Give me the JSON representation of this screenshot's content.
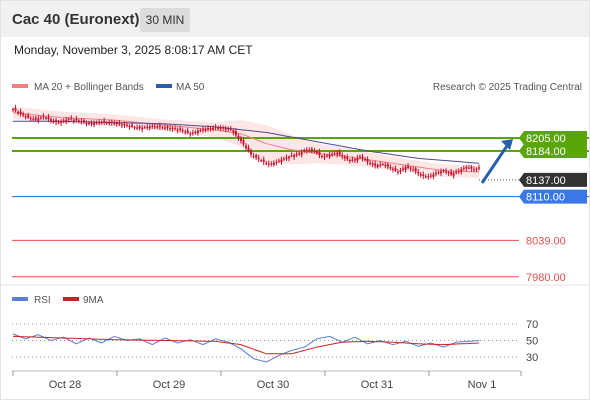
{
  "header": {
    "title": "Cac 40 (Euronext)",
    "timeframe": "30 MIN",
    "datetime": "Monday, November 3, 2025 8:08:17 AM CET"
  },
  "legend": {
    "ma20": "MA 20 + Bollinger Bands",
    "ma50": "MA 50",
    "credit": "Research © 2025 Trading Central",
    "rsi": "RSI",
    "rsi_ma": "9MA"
  },
  "colors": {
    "candle": "#c8102e",
    "ma20": "#f08080",
    "bollinger_fill": "#fde2e2",
    "ma50": "#4a4a8a",
    "resistance": "#5aa50a",
    "support": "#3b78e7",
    "target": "#e05050",
    "arrow": "#2a5ea8",
    "current": "#333333",
    "rsi": "#5b7fd6",
    "rsi_ma": "#cc2222"
  },
  "chart_data": {
    "type": "line",
    "series_kind": "candlestick",
    "x_ticks": [
      "Oct 28",
      "Oct 29",
      "Oct 30",
      "Oct 31",
      "Nov 1"
    ],
    "price_range": [
      7965,
      8265
    ],
    "price_path": [
      [
        0,
        8252
      ],
      [
        3,
        8244
      ],
      [
        6,
        8238
      ],
      [
        9,
        8235
      ],
      [
        12,
        8240
      ],
      [
        15,
        8233
      ],
      [
        18,
        8230
      ],
      [
        22,
        8236
      ],
      [
        26,
        8233
      ],
      [
        30,
        8228
      ],
      [
        35,
        8231
      ],
      [
        40,
        8229
      ],
      [
        45,
        8225
      ],
      [
        50,
        8221
      ],
      [
        55,
        8224
      ],
      [
        60,
        8222
      ],
      [
        66,
        8218
      ],
      [
        70,
        8212
      ],
      [
        74,
        8218
      ],
      [
        80,
        8222
      ],
      [
        86,
        8219
      ],
      [
        90,
        8200
      ],
      [
        94,
        8178
      ],
      [
        98,
        8168
      ],
      [
        101,
        8162
      ],
      [
        104,
        8166
      ],
      [
        107,
        8172
      ],
      [
        110,
        8176
      ],
      [
        113,
        8180
      ],
      [
        116,
        8186
      ],
      [
        119,
        8184
      ],
      [
        122,
        8174
      ],
      [
        125,
        8178
      ],
      [
        128,
        8181
      ],
      [
        131,
        8172
      ],
      [
        134,
        8168
      ],
      [
        137,
        8175
      ],
      [
        140,
        8166
      ],
      [
        143,
        8160
      ],
      [
        146,
        8163
      ],
      [
        149,
        8156
      ],
      [
        152,
        8150
      ],
      [
        155,
        8158
      ],
      [
        158,
        8154
      ],
      [
        161,
        8144
      ],
      [
        164,
        8142
      ],
      [
        167,
        8148
      ],
      [
        170,
        8152
      ],
      [
        173,
        8146
      ],
      [
        176,
        8152
      ],
      [
        179,
        8158
      ],
      [
        182,
        8154
      ],
      [
        184,
        8157
      ]
    ],
    "ma20_path": [
      [
        0,
        8246
      ],
      [
        20,
        8238
      ],
      [
        40,
        8234
      ],
      [
        60,
        8226
      ],
      [
        80,
        8218
      ],
      [
        90,
        8212
      ],
      [
        100,
        8196
      ],
      [
        110,
        8186
      ],
      [
        120,
        8180
      ],
      [
        130,
        8176
      ],
      [
        140,
        8170
      ],
      [
        150,
        8164
      ],
      [
        160,
        8158
      ],
      [
        170,
        8152
      ],
      [
        184,
        8150
      ]
    ],
    "bollinger_width": [
      [
        0,
        10
      ],
      [
        60,
        9
      ],
      [
        80,
        12
      ],
      [
        90,
        22
      ],
      [
        100,
        30
      ],
      [
        110,
        24
      ],
      [
        120,
        16
      ],
      [
        140,
        12
      ],
      [
        160,
        10
      ],
      [
        184,
        10
      ]
    ],
    "ma50_path": [
      [
        0,
        8232
      ],
      [
        20,
        8232
      ],
      [
        40,
        8230
      ],
      [
        60,
        8228
      ],
      [
        80,
        8223
      ],
      [
        100,
        8214
      ],
      [
        120,
        8199
      ],
      [
        140,
        8184
      ],
      [
        160,
        8172
      ],
      [
        184,
        8164
      ]
    ],
    "levels": [
      {
        "label": "8205.00",
        "value": 8205,
        "kind": "resistance"
      },
      {
        "label": "8184.00",
        "value": 8184,
        "kind": "resistance"
      },
      {
        "label": "8137.00",
        "value": 8137,
        "kind": "current"
      },
      {
        "label": "8110.00",
        "value": 8110,
        "kind": "support"
      },
      {
        "label": "8039.00",
        "value": 8039,
        "kind": "target"
      },
      {
        "label": "7980.00",
        "value": 7980,
        "kind": "target"
      }
    ],
    "rsi": {
      "ticks": [
        70,
        50,
        30
      ],
      "range": [
        18,
        82
      ],
      "rsi_path": [
        [
          0,
          58
        ],
        [
          5,
          52
        ],
        [
          10,
          57
        ],
        [
          15,
          50
        ],
        [
          20,
          54
        ],
        [
          25,
          46
        ],
        [
          30,
          53
        ],
        [
          35,
          47
        ],
        [
          40,
          55
        ],
        [
          45,
          50
        ],
        [
          50,
          52
        ],
        [
          55,
          45
        ],
        [
          60,
          53
        ],
        [
          65,
          47
        ],
        [
          70,
          51
        ],
        [
          75,
          45
        ],
        [
          80,
          52
        ],
        [
          85,
          48
        ],
        [
          90,
          40
        ],
        [
          95,
          28
        ],
        [
          100,
          24
        ],
        [
          105,
          32
        ],
        [
          110,
          38
        ],
        [
          115,
          42
        ],
        [
          120,
          52
        ],
        [
          125,
          55
        ],
        [
          130,
          48
        ],
        [
          135,
          54
        ],
        [
          140,
          46
        ],
        [
          145,
          50
        ],
        [
          150,
          45
        ],
        [
          155,
          49
        ],
        [
          160,
          43
        ],
        [
          165,
          47
        ],
        [
          170,
          42
        ],
        [
          175,
          48
        ],
        [
          180,
          49
        ],
        [
          184,
          50
        ]
      ],
      "ma_path": [
        [
          0,
          55
        ],
        [
          20,
          53
        ],
        [
          40,
          51
        ],
        [
          60,
          50
        ],
        [
          80,
          49
        ],
        [
          90,
          45
        ],
        [
          100,
          34
        ],
        [
          110,
          34
        ],
        [
          120,
          42
        ],
        [
          130,
          48
        ],
        [
          140,
          49
        ],
        [
          150,
          48
        ],
        [
          160,
          46
        ],
        [
          170,
          45
        ],
        [
          184,
          47
        ]
      ]
    }
  }
}
